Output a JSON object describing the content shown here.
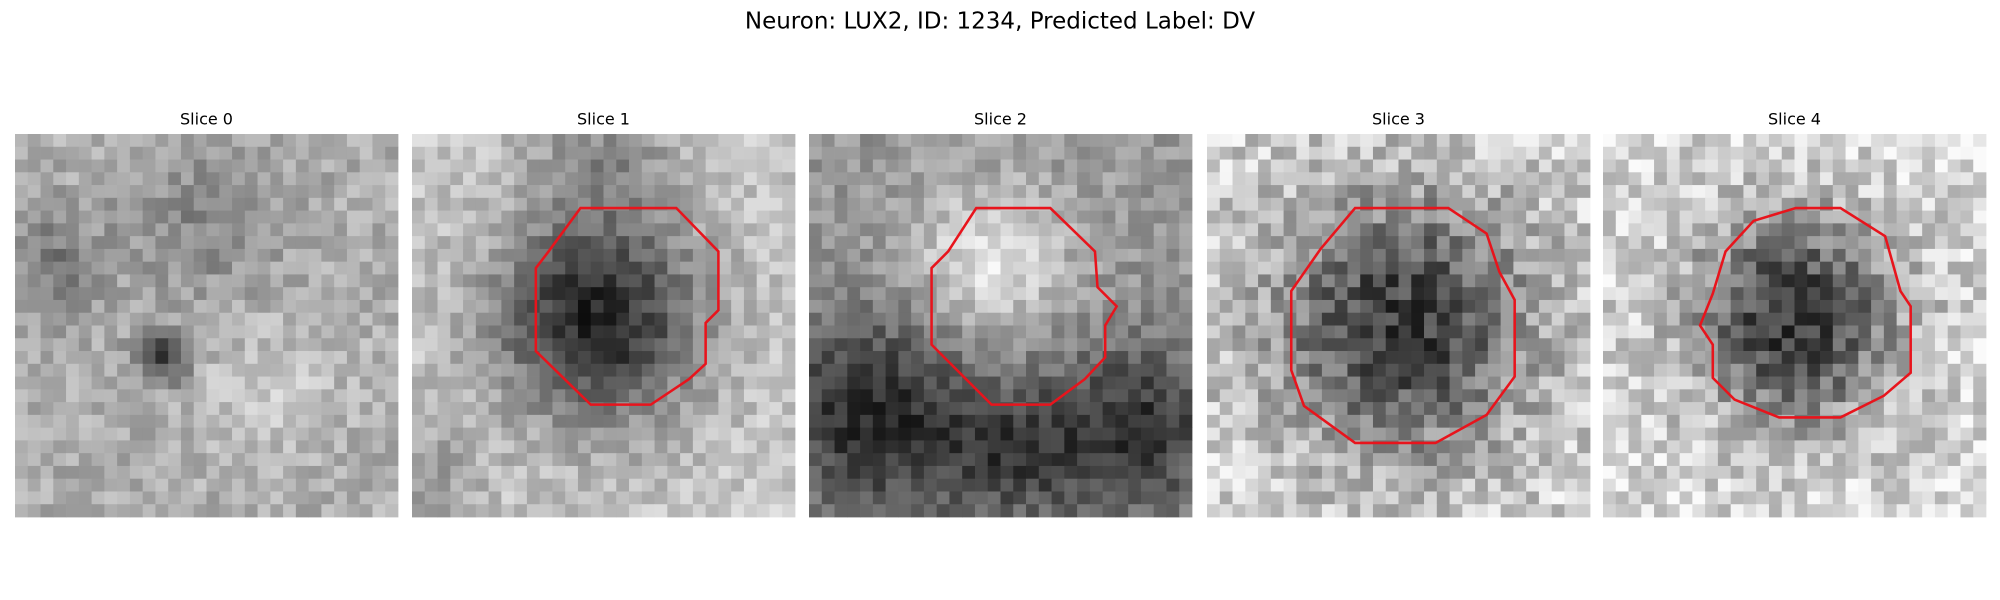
{
  "title": "Neuron: LUX2, ID: 1234, Predicted Label: DV",
  "panels": [
    {
      "title": "Slice 0"
    },
    {
      "title": "Slice 1"
    },
    {
      "title": "Slice 2"
    },
    {
      "title": "Slice 3"
    },
    {
      "title": "Slice 4"
    }
  ]
}
